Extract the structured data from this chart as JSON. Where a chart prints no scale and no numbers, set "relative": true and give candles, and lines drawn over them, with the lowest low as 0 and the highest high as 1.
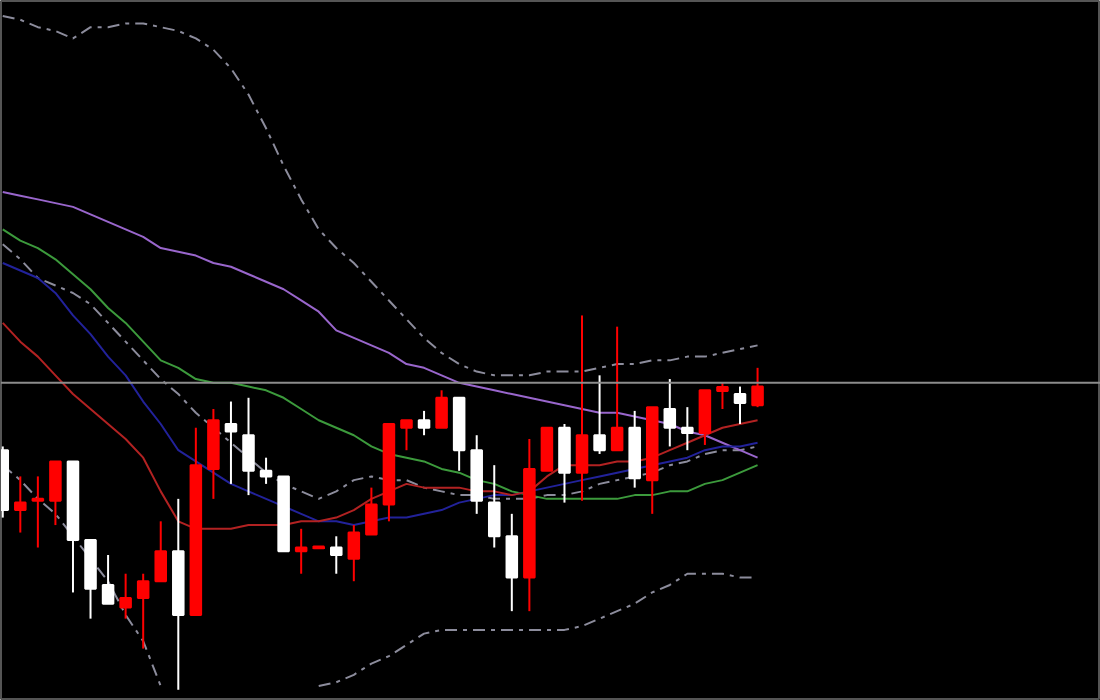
{
  "chart_data": {
    "type": "candlestick",
    "relative": true,
    "grid": false,
    "categories": [
      null,
      null,
      null,
      null,
      null,
      null,
      null,
      null,
      null,
      null,
      null,
      null,
      null,
      null,
      null,
      null,
      null,
      null,
      null,
      null,
      null,
      null,
      null,
      null,
      null,
      null,
      null,
      null,
      null,
      null,
      null,
      null,
      null,
      null,
      null,
      null,
      null,
      null,
      null,
      null,
      null,
      null,
      null,
      null
    ],
    "ohlc": [
      [
        0.64,
        0.65,
        0.46,
        0.48
      ],
      [
        0.48,
        0.57,
        0.42,
        0.5
      ],
      [
        0.505,
        0.57,
        0.38,
        0.51
      ],
      [
        0.505,
        0.61,
        0.44,
        0.61
      ],
      [
        0.61,
        0.61,
        0.26,
        0.4
      ],
      [
        0.4,
        0.4,
        0.19,
        0.27
      ],
      [
        0.28,
        0.36,
        0.23,
        0.23
      ],
      [
        0.22,
        0.31,
        0.19,
        0.245
      ],
      [
        0.245,
        0.31,
        0.11,
        0.29
      ],
      [
        0.29,
        0.45,
        0.29,
        0.37
      ],
      [
        0.37,
        0.51,
        0.0,
        0.2
      ],
      [
        0.2,
        0.7,
        0.2,
        0.6
      ],
      [
        0.59,
        0.75,
        0.51,
        0.72
      ],
      [
        0.71,
        0.77,
        0.55,
        0.69
      ],
      [
        0.68,
        0.78,
        0.52,
        0.585
      ],
      [
        0.585,
        0.62,
        0.55,
        0.57
      ],
      [
        0.57,
        0.57,
        0.37,
        0.37
      ],
      [
        0.37,
        0.43,
        0.31,
        0.38
      ],
      [
        0.378,
        0.383,
        0.378,
        0.383
      ],
      [
        0.38,
        0.41,
        0.31,
        0.36
      ],
      [
        0.35,
        0.44,
        0.29,
        0.42
      ],
      [
        0.415,
        0.54,
        0.415,
        0.495
      ],
      [
        0.495,
        0.71,
        0.45,
        0.71
      ],
      [
        0.7,
        0.72,
        0.64,
        0.72
      ],
      [
        0.72,
        0.745,
        0.68,
        0.7
      ],
      [
        0.7,
        0.8,
        0.7,
        0.78
      ],
      [
        0.78,
        0.78,
        0.585,
        0.64
      ],
      [
        0.64,
        0.68,
        0.47,
        0.505
      ],
      [
        0.5,
        0.6,
        0.38,
        0.41
      ],
      [
        0.41,
        0.47,
        0.21,
        0.3
      ],
      [
        0.3,
        0.67,
        0.21,
        0.59
      ],
      [
        0.585,
        0.7,
        0.585,
        0.7
      ],
      [
        0.7,
        0.71,
        0.5,
        0.58
      ],
      [
        0.58,
        1.0,
        0.505,
        0.68
      ],
      [
        0.68,
        0.84,
        0.63,
        0.64
      ],
      [
        0.64,
        0.97,
        0.64,
        0.7
      ],
      [
        0.7,
        0.745,
        0.54,
        0.565
      ],
      [
        0.56,
        0.755,
        0.47,
        0.755
      ],
      [
        0.75,
        0.83,
        0.65,
        0.7
      ],
      [
        0.7,
        0.755,
        0.64,
        0.686
      ],
      [
        0.686,
        0.8,
        0.654,
        0.8
      ],
      [
        0.798,
        0.82,
        0.75,
        0.809
      ],
      [
        0.79,
        0.81,
        0.71,
        0.766
      ],
      [
        0.76,
        0.86,
        0.755,
        0.81
      ]
    ],
    "colors": [
      "#ffffff",
      "#ff0000",
      "#ff0000",
      "#ff0000",
      "#ffffff",
      "#ffffff",
      "#ffffff",
      "#ff0000",
      "#ff0000",
      "#ff0000",
      "#ffffff",
      "#ff0000",
      "#ff0000",
      "#ffffff",
      "#ffffff",
      "#ffffff",
      "#ffffff",
      "#ff0000",
      "#ff0000",
      "#ffffff",
      "#ff0000",
      "#ff0000",
      "#ff0000",
      "#ff0000",
      "#ffffff",
      "#ff0000",
      "#ffffff",
      "#ffffff",
      "#ffffff",
      "#ffffff",
      "#ff0000",
      "#ff0000",
      "#ffffff",
      "#ff0000",
      "#ffffff",
      "#ff0000",
      "#ffffff",
      "#ff0000",
      "#ffffff",
      "#ffffff",
      "#ff0000",
      "#ff0000",
      "#ffffff",
      "#ff0000"
    ],
    "series": [
      {
        "type": "line",
        "color": "#8c8c9c",
        "line_style": "dashed",
        "values": [
          1.8,
          1.79,
          1.77,
          1.76,
          1.74,
          1.77,
          1.77,
          1.78,
          1.78,
          1.77,
          1.76,
          1.74,
          1.71,
          1.66,
          1.59,
          1.5,
          1.4,
          1.31,
          1.23,
          1.18,
          1.14,
          1.09,
          1.04,
          0.99,
          0.94,
          0.9,
          0.87,
          0.85,
          0.84,
          0.84,
          0.84,
          0.85,
          0.85,
          0.85,
          0.86,
          0.87,
          0.87,
          0.88,
          0.88,
          0.89,
          0.89,
          0.9,
          0.91,
          0.92
        ]
      },
      {
        "type": "line",
        "color": "#8c8c9c",
        "line_style": "dashed",
        "values": [
          1.19,
          1.15,
          1.1,
          1.08,
          1.06,
          1.03,
          0.98,
          0.93,
          0.88,
          0.83,
          0.79,
          0.74,
          0.7,
          0.66,
          0.62,
          0.58,
          0.55,
          0.53,
          0.51,
          0.53,
          0.56,
          0.57,
          0.56,
          0.56,
          0.54,
          0.53,
          0.52,
          0.52,
          0.51,
          0.51,
          0.51,
          0.52,
          0.52,
          0.53,
          0.55,
          0.56,
          0.57,
          0.58,
          0.6,
          0.61,
          0.63,
          0.64,
          0.64,
          0.65
        ]
      },
      {
        "type": "line",
        "color": "#8c8c9c",
        "line_style": "dashed",
        "values": [
          0.6,
          0.56,
          0.51,
          0.47,
          0.41,
          0.35,
          0.29,
          0.2,
          0.13,
          0.01,
          null,
          null,
          null,
          null,
          null,
          null,
          null,
          null,
          0.01,
          0.02,
          0.04,
          0.07,
          0.09,
          0.12,
          0.15,
          0.16,
          0.16,
          0.16,
          0.16,
          0.16,
          0.16,
          0.16,
          0.16,
          0.17,
          0.19,
          0.21,
          0.23,
          0.26,
          0.28,
          0.31,
          0.31,
          0.31,
          0.3,
          0.3
        ]
      },
      {
        "type": "line",
        "color": "#9966cc",
        "line_style": "solid",
        "values": [
          1.33,
          1.32,
          1.31,
          1.3,
          1.29,
          1.27,
          1.25,
          1.23,
          1.21,
          1.18,
          1.17,
          1.16,
          1.14,
          1.13,
          1.11,
          1.09,
          1.07,
          1.04,
          1.01,
          0.96,
          0.94,
          0.92,
          0.9,
          0.87,
          0.86,
          0.84,
          0.82,
          0.81,
          0.8,
          0.79,
          0.78,
          0.77,
          0.76,
          0.75,
          0.74,
          0.74,
          0.73,
          0.72,
          0.71,
          0.69,
          0.68,
          0.66,
          0.64,
          0.62
        ]
      },
      {
        "type": "line",
        "color": "#3c9a3c",
        "line_style": "solid",
        "values": [
          1.23,
          1.2,
          1.18,
          1.15,
          1.11,
          1.07,
          1.02,
          0.98,
          0.93,
          0.88,
          0.86,
          0.83,
          0.82,
          0.82,
          0.81,
          0.8,
          0.78,
          0.75,
          0.72,
          0.7,
          0.68,
          0.65,
          0.63,
          0.62,
          0.61,
          0.59,
          0.58,
          0.56,
          0.55,
          0.53,
          0.52,
          0.51,
          0.51,
          0.51,
          0.51,
          0.51,
          0.52,
          0.52,
          0.53,
          0.53,
          0.55,
          0.56,
          0.58,
          0.6
        ]
      },
      {
        "type": "line",
        "color": "#22229a",
        "line_style": "solid",
        "values": [
          1.14,
          1.12,
          1.1,
          1.06,
          1.0,
          0.95,
          0.89,
          0.84,
          0.77,
          0.71,
          0.64,
          0.61,
          0.58,
          0.55,
          0.53,
          0.51,
          0.49,
          0.47,
          0.45,
          0.45,
          0.44,
          0.45,
          0.46,
          0.46,
          0.47,
          0.48,
          0.5,
          0.51,
          0.52,
          0.52,
          0.53,
          0.54,
          0.55,
          0.56,
          0.57,
          0.58,
          0.59,
          0.6,
          0.61,
          0.62,
          0.64,
          0.65,
          0.65,
          0.66
        ]
      },
      {
        "type": "line",
        "color": "#b22222",
        "line_style": "solid",
        "values": [
          0.98,
          0.93,
          0.89,
          0.84,
          0.79,
          0.75,
          0.71,
          0.67,
          0.62,
          0.53,
          0.45,
          0.43,
          0.43,
          0.43,
          0.44,
          0.44,
          0.44,
          0.45,
          0.45,
          0.46,
          0.48,
          0.51,
          0.53,
          0.55,
          0.54,
          0.54,
          0.54,
          0.53,
          0.53,
          0.52,
          0.53,
          0.57,
          0.6,
          0.6,
          0.6,
          0.61,
          0.61,
          0.62,
          0.64,
          0.66,
          0.68,
          0.7,
          0.71,
          0.72
        ]
      }
    ],
    "ref_lines": [
      {
        "axis": "y",
        "value": 0.82,
        "color": "#8c8c8c",
        "line_style": "solid"
      }
    ]
  }
}
